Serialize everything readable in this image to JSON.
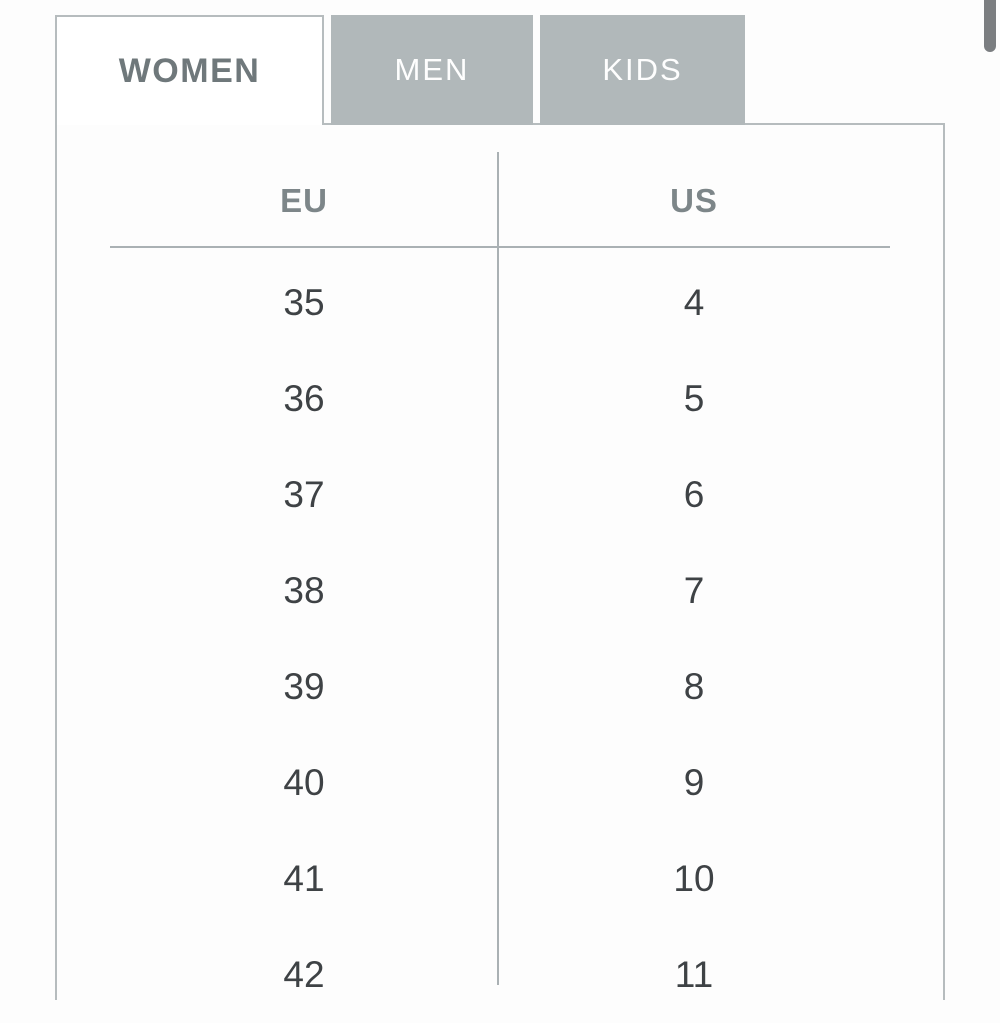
{
  "tabs": [
    {
      "label": "WOMEN",
      "active": true
    },
    {
      "label": "MEN",
      "active": false
    },
    {
      "label": "KIDS",
      "active": false
    }
  ],
  "table": {
    "columns": [
      "EU",
      "US"
    ],
    "rows": [
      {
        "eu": "35",
        "us": "4"
      },
      {
        "eu": "36",
        "us": "5"
      },
      {
        "eu": "37",
        "us": "6"
      },
      {
        "eu": "38",
        "us": "7"
      },
      {
        "eu": "39",
        "us": "8"
      },
      {
        "eu": "40",
        "us": "9"
      },
      {
        "eu": "41",
        "us": "10"
      },
      {
        "eu": "42",
        "us": "11"
      }
    ]
  },
  "colors": {
    "tab_inactive_bg": "#b1b8ba",
    "tab_active_text": "#6f787b",
    "panel_border": "#b6bcbe",
    "table_rule": "#aab1b4",
    "header_text": "#7d8689",
    "cell_text": "#3e4245",
    "scrollbar": "#7b7e81"
  }
}
